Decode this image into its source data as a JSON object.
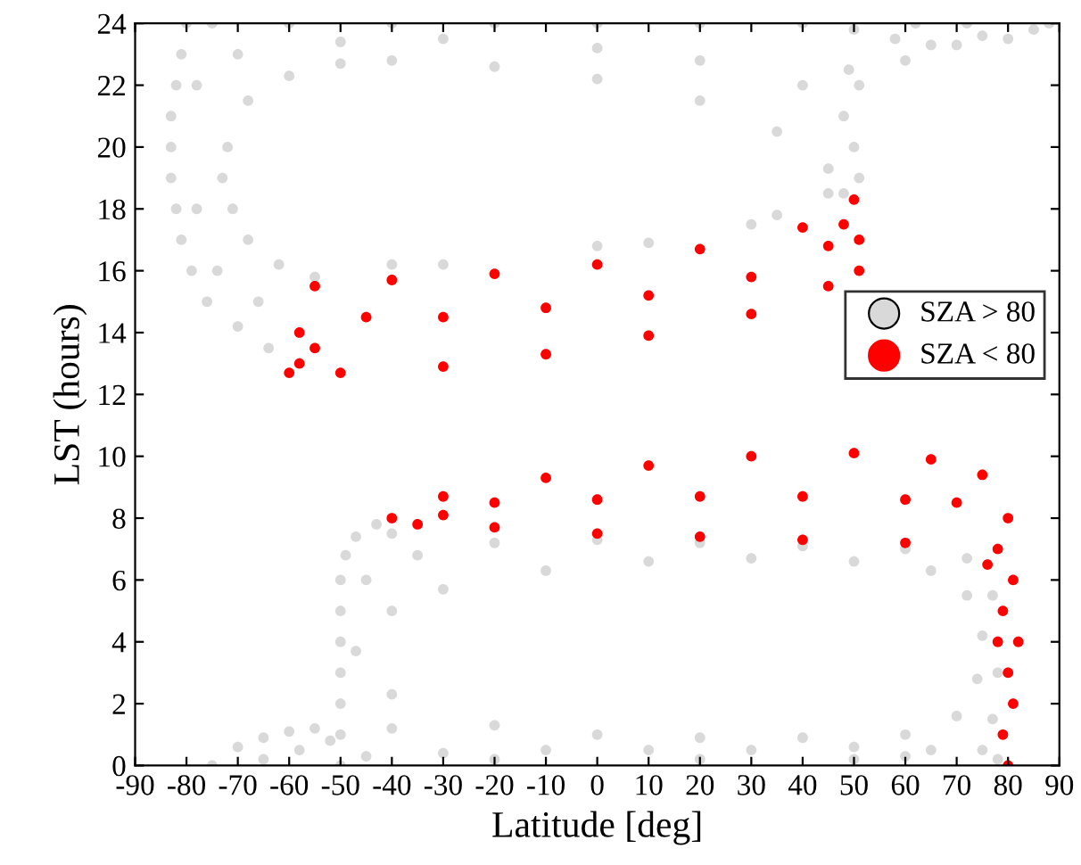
{
  "chart_data": {
    "type": "scatter",
    "xlabel": "Latitude [deg]",
    "ylabel": "LST (hours)",
    "xlim": [
      -90,
      90
    ],
    "xticks": [
      -90,
      -80,
      -70,
      -60,
      -50,
      -40,
      -30,
      -20,
      -10,
      0,
      10,
      20,
      30,
      40,
      50,
      60,
      70,
      80,
      90
    ],
    "ylim": [
      0,
      24
    ],
    "yticks": [
      0,
      2,
      4,
      6,
      8,
      10,
      12,
      14,
      16,
      18,
      20,
      22,
      24
    ],
    "grid": false,
    "legend": "right",
    "marker": "circle",
    "series": [
      {
        "name": "SZA > 80",
        "color": "#d9d9d9",
        "x": [
          -80,
          -81,
          -82,
          -83,
          -83,
          -83,
          -82,
          -81,
          -79,
          -76,
          -70,
          -64,
          -72,
          -73,
          -71,
          -68,
          -62,
          -55,
          -68,
          -60,
          -50,
          -40,
          -20,
          0,
          20,
          35,
          45,
          48,
          -75,
          -60,
          -40,
          -20,
          0,
          20,
          40,
          50,
          -78,
          -78,
          -70,
          -50,
          -30,
          0,
          20,
          40,
          48,
          50,
          51,
          51,
          49,
          -74,
          -66,
          -40,
          -30,
          0,
          10,
          30,
          35,
          45,
          58,
          60,
          65,
          70,
          75,
          80,
          85,
          88,
          62,
          72,
          -50,
          -50,
          -50,
          -50,
          -50,
          -50,
          -50,
          -49,
          -47,
          -43,
          -40,
          -45,
          -30,
          -10,
          10,
          30,
          50,
          65,
          75,
          78,
          -47,
          -40,
          -30,
          -10,
          10,
          30,
          50,
          65,
          72,
          75,
          -40,
          -20,
          0,
          20,
          40,
          60,
          70,
          74,
          -45,
          -35,
          -20,
          0,
          20,
          40,
          60,
          72,
          77,
          78,
          77,
          -75,
          -70,
          -65,
          -60,
          -55,
          -52,
          -65,
          -58,
          -40,
          20,
          -20,
          50,
          60
        ],
        "values": [
          24,
          23,
          22,
          21,
          20,
          19,
          18,
          17,
          16,
          15,
          14.2,
          13.5,
          20,
          19,
          18,
          17,
          16.2,
          15.8,
          21.5,
          22.3,
          22.7,
          22.8,
          22.6,
          22.2,
          21.5,
          20.5,
          19.3,
          18.5,
          24,
          24,
          24,
          24,
          24,
          24,
          24,
          23.8,
          22,
          18,
          23,
          23.4,
          23.5,
          23.2,
          22.8,
          22,
          21,
          20,
          19,
          22,
          22.5,
          16,
          15,
          16.2,
          16.2,
          16.8,
          16.9,
          17.5,
          17.8,
          18.5,
          23.5,
          22.8,
          23.3,
          23.3,
          23.6,
          23.5,
          23.8,
          24,
          24,
          24,
          0,
          1,
          2,
          3,
          4,
          5,
          6,
          6.8,
          7.4,
          7.8,
          7.5,
          0.3,
          0.4,
          0.5,
          0.5,
          0.5,
          0.6,
          0.5,
          0.5,
          0.2,
          3.7,
          5,
          5.7,
          6.3,
          6.6,
          6.7,
          6.6,
          6.3,
          5.5,
          4.2,
          2.3,
          1.3,
          1.0,
          0.9,
          0.9,
          1.0,
          1.6,
          2.8,
          6,
          6.8,
          7.2,
          7.3,
          7.2,
          7.1,
          7.0,
          6.7,
          5.5,
          3,
          1.5,
          0,
          0.6,
          0.9,
          1.1,
          1.2,
          0.8,
          0.2,
          0.5,
          1.2,
          0.2,
          0.2,
          0.2,
          0.3
        ]
      },
      {
        "name": "SZA < 80",
        "color": "#ff0000",
        "x": [
          -60,
          -58,
          -55,
          -40,
          -20,
          0,
          20,
          40,
          50,
          51,
          51,
          45,
          30,
          10,
          -10,
          -30,
          -50,
          -55,
          -45,
          -30,
          -10,
          10,
          30,
          45,
          48,
          -58,
          -40,
          -30,
          -10,
          10,
          30,
          50,
          65,
          75,
          80,
          81,
          82,
          81,
          80,
          79,
          78,
          76,
          60,
          40,
          20,
          0,
          -20,
          -35,
          -20,
          0,
          20,
          40,
          60,
          70,
          78,
          79,
          80,
          -30
        ],
        "values": [
          12.7,
          14,
          15.5,
          15.7,
          15.9,
          16.2,
          16.7,
          17.4,
          18.3,
          17,
          16,
          15.5,
          14.6,
          13.9,
          13.3,
          12.9,
          12.7,
          13.5,
          14.5,
          14.5,
          14.8,
          15.2,
          15.8,
          16.8,
          17.5,
          13,
          8,
          8.7,
          9.3,
          9.7,
          10,
          10.1,
          9.9,
          9.4,
          8,
          6,
          4,
          2,
          0,
          1,
          4,
          6.5,
          7.2,
          7.3,
          7.4,
          7.5,
          7.7,
          7.8,
          8.5,
          8.6,
          8.7,
          8.7,
          8.6,
          8.5,
          7,
          5,
          3,
          8.1
        ]
      }
    ]
  }
}
